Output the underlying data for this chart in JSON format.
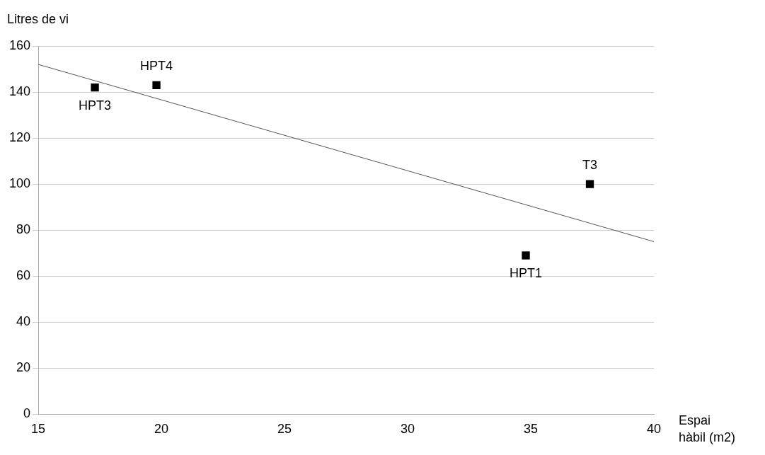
{
  "chart_data": {
    "type": "scatter",
    "xlabel": "Espai hàbil (m2)",
    "ylabel": "Litres de vi",
    "xlim": [
      15,
      40
    ],
    "xticks": [
      15,
      20,
      25,
      30,
      35,
      40
    ],
    "ylim": [
      0,
      160
    ],
    "yticks": [
      0,
      20,
      40,
      60,
      80,
      100,
      120,
      140,
      160
    ],
    "grid": "y",
    "legend": false,
    "marker": "square",
    "series": [
      {
        "type": "scatter",
        "color": "#000000",
        "x": [
          17.3,
          19.8,
          34.8,
          37.4
        ],
        "values": [
          142,
          143,
          69,
          100
        ]
      },
      {
        "type": "line",
        "color": "#555555",
        "x": [
          15,
          40
        ],
        "values": [
          152,
          75
        ],
        "marker": "none"
      }
    ],
    "annotations": [
      {
        "text": "HPT3",
        "x": 17.3,
        "y": 142
      },
      {
        "text": "HPT4",
        "x": 19.8,
        "y": 143
      },
      {
        "text": "HPT1",
        "x": 34.8,
        "y": 69
      },
      {
        "text": "T3",
        "x": 37.4,
        "y": 100
      }
    ]
  }
}
